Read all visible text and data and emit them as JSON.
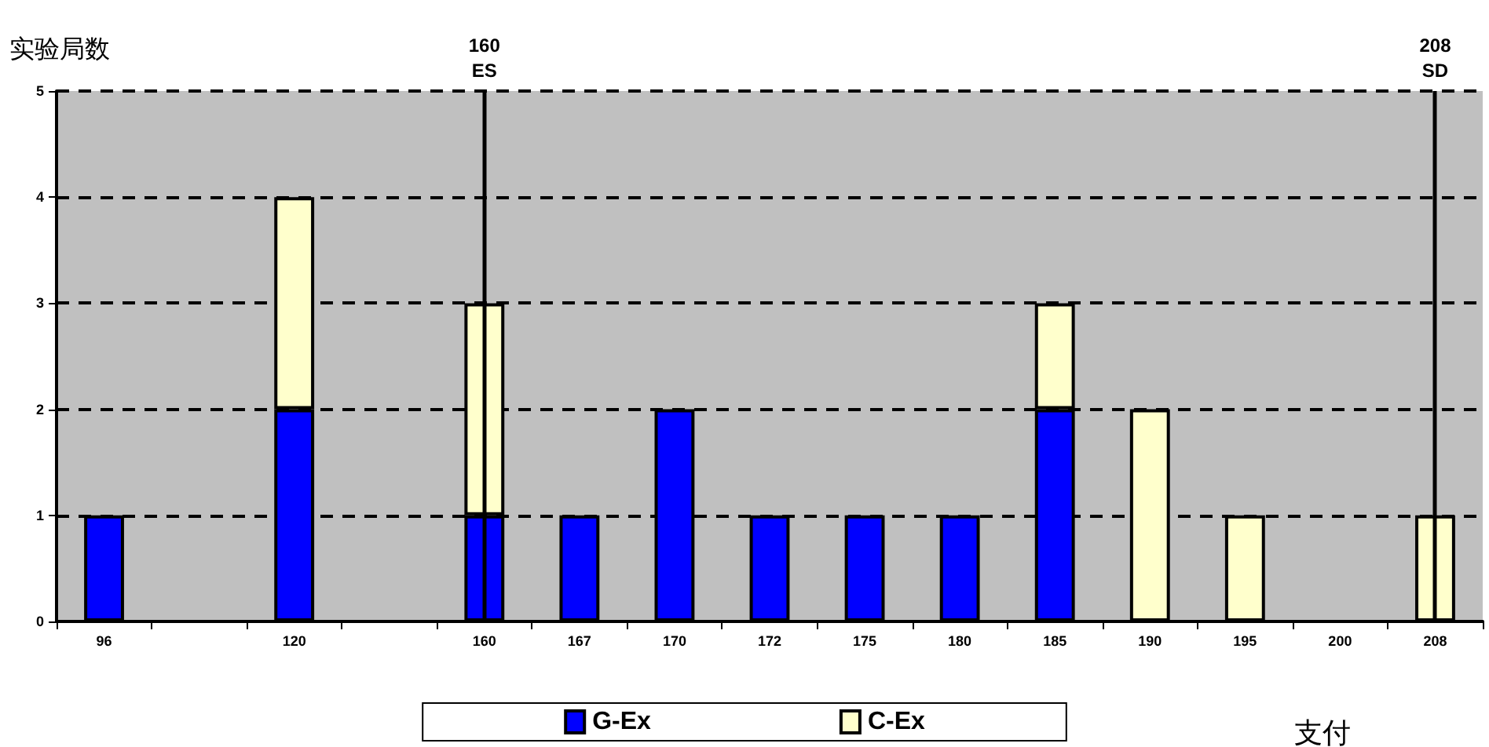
{
  "chart_data": {
    "type": "bar",
    "ylabel": "实验局数",
    "xlabel": "支付",
    "categories": [
      "96",
      null,
      "120",
      null,
      "160",
      "167",
      "170",
      "172",
      "175",
      "180",
      "185",
      "190",
      "195",
      "200",
      "208"
    ],
    "series": [
      {
        "name": "G-Ex",
        "color": "#0000ff",
        "values": [
          1,
          null,
          2,
          null,
          1,
          1,
          2,
          1,
          1,
          1,
          2,
          null,
          null,
          null,
          null
        ]
      },
      {
        "name": "C-Ex",
        "color": "#ffffcc",
        "values": [
          null,
          null,
          2,
          null,
          2,
          null,
          null,
          null,
          null,
          null,
          1,
          2,
          1,
          null,
          1
        ]
      }
    ],
    "stacked": true,
    "ylim": [
      0,
      5
    ],
    "yticks": [
      0,
      1,
      2,
      3,
      4,
      5
    ],
    "grid": "y",
    "legend": "bottom",
    "ref_lines": [
      {
        "axis": "x",
        "value": "160",
        "label": "ES",
        "color": "#000000"
      },
      {
        "axis": "x",
        "value": "208",
        "label": "SD",
        "color": "#000000"
      }
    ]
  }
}
